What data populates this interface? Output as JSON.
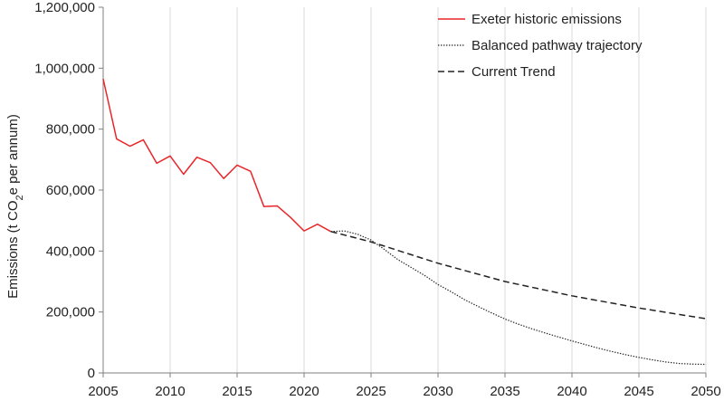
{
  "chart_data": {
    "type": "line",
    "title": "",
    "ylabel": {
      "prefix": "Emissions (t CO",
      "subscript": "2",
      "suffix": "e per annum)"
    },
    "xlabel": "",
    "xlim": [
      2005,
      2050
    ],
    "ylim": [
      0,
      1200000
    ],
    "x_ticks": [
      2005,
      2010,
      2015,
      2020,
      2025,
      2030,
      2035,
      2040,
      2045,
      2050
    ],
    "x_tick_labels": [
      "2005",
      "2010",
      "2015",
      "2020",
      "2025",
      "2030",
      "2035",
      "2040",
      "2045",
      "2050"
    ],
    "y_ticks": [
      0,
      200000,
      400000,
      600000,
      800000,
      1000000,
      1200000
    ],
    "y_tick_labels": [
      "0",
      "200,000",
      "400,000",
      "600,000",
      "800,000",
      "1,000,000",
      "1,200,000"
    ],
    "grid": {
      "vertical": true,
      "horizontal": false
    },
    "legend_position": "top-right",
    "series": [
      {
        "name": "Exeter historic emissions",
        "style": "solid",
        "color": "#e8262a",
        "x": [
          2005,
          2006,
          2007,
          2008,
          2009,
          2010,
          2011,
          2012,
          2013,
          2014,
          2015,
          2016,
          2017,
          2018,
          2019,
          2020,
          2021,
          2022
        ],
        "y": [
          965000,
          768000,
          744000,
          765000,
          688000,
          712000,
          652000,
          708000,
          690000,
          638000,
          682000,
          662000,
          546000,
          548000,
          510000,
          466000,
          488000,
          464000
        ]
      },
      {
        "name": "Balanced pathway trajectory",
        "style": "dotted",
        "color": "#222222",
        "x": [
          2022,
          2023,
          2024,
          2025,
          2026,
          2027,
          2028,
          2029,
          2030,
          2031,
          2032,
          2033,
          2034,
          2035,
          2036,
          2037,
          2038,
          2039,
          2040,
          2041,
          2042,
          2043,
          2044,
          2045,
          2046,
          2047,
          2048,
          2049,
          2050
        ],
        "y": [
          464000,
          466000,
          455000,
          436000,
          405000,
          372000,
          346000,
          320000,
          290000,
          266000,
          240000,
          218000,
          197000,
          177000,
          160000,
          145000,
          131000,
          118000,
          105000,
          93000,
          81000,
          70000,
          60000,
          51000,
          43000,
          36000,
          31000,
          29000,
          28000
        ]
      },
      {
        "name": "Current Trend",
        "style": "dashed",
        "color": "#222222",
        "x": [
          2022,
          2025,
          2030,
          2035,
          2040,
          2045,
          2050
        ],
        "y": [
          464000,
          430000,
          360000,
          300000,
          253000,
          213000,
          178000
        ]
      }
    ]
  }
}
